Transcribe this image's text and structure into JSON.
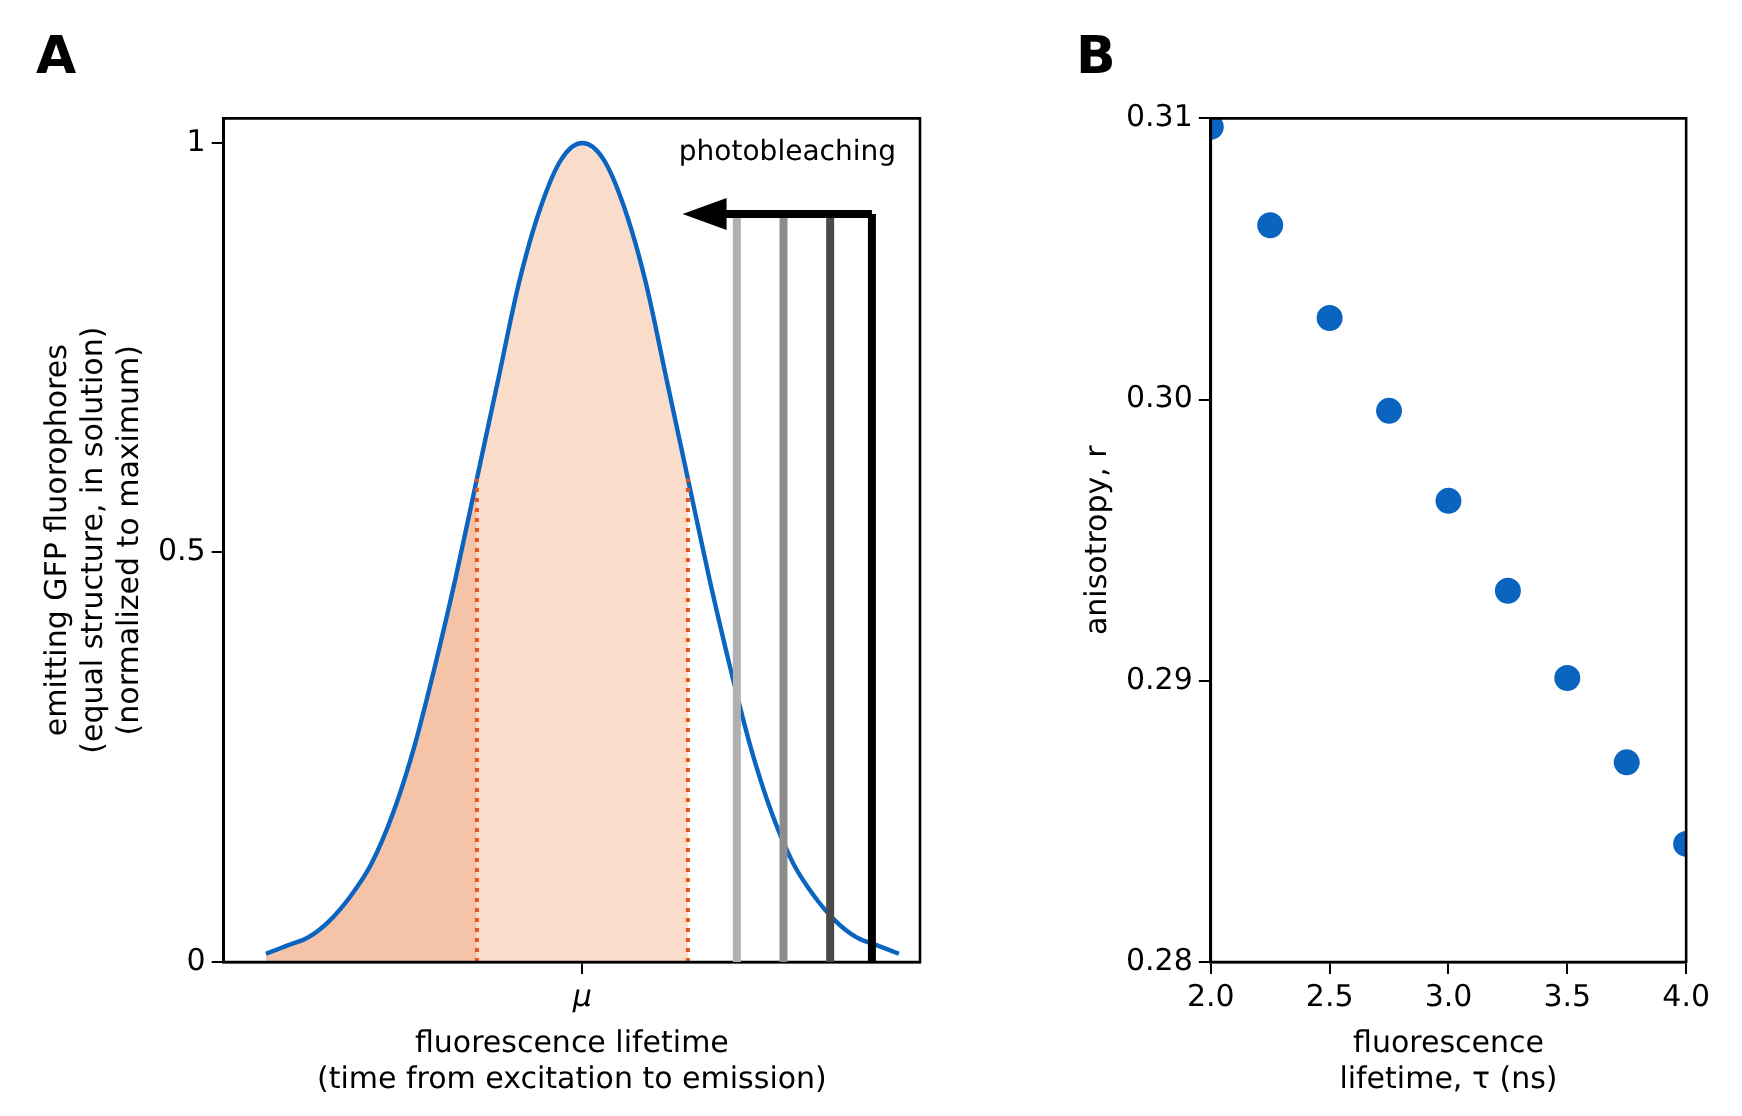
{
  "chart_data": [
    {
      "type": "line",
      "title": "A",
      "xlabel": "fluorescence lifetime\n(time from excitation to emission)",
      "ylabel": "emitting GFP fluorophores\n(equal structure, in solution)\n(normalized to maximum)",
      "categories": [
        null,
        null,
        null,
        null,
        null,
        null,
        null,
        null,
        null,
        null,
        null,
        null,
        null,
        null,
        null,
        null,
        null,
        "μ",
        null,
        null,
        null,
        null,
        null,
        null,
        null,
        null,
        null,
        null,
        null,
        null,
        null,
        null,
        null,
        null
      ],
      "series": [
        {
          "type": "area",
          "color": "#f5c4a8",
          "values": [
            null,
            null,
            0.01,
            0.02,
            0.03,
            0.05,
            0.08,
            0.12,
            0.18,
            0.26,
            0.36,
            0.47,
            0.59,
            null,
            null,
            null,
            null,
            null,
            null,
            null,
            null,
            null,
            null,
            null,
            null,
            null,
            null,
            null,
            null,
            null,
            null,
            null,
            null,
            null
          ]
        },
        {
          "type": "area",
          "color": "#fadccb",
          "line_style": "dotted",
          "values": [
            null,
            null,
            null,
            null,
            null,
            null,
            null,
            null,
            null,
            null,
            null,
            null,
            0.59,
            0.71,
            0.83,
            0.92,
            0.98,
            1,
            0.98,
            0.92,
            0.83,
            0.71,
            0.59,
            null,
            null,
            null,
            null,
            null,
            null,
            null,
            null,
            null,
            null,
            null
          ]
        },
        {
          "type": "line",
          "color": "#0a64c0",
          "values": [
            null,
            null,
            0.01,
            0.02,
            0.03,
            0.05,
            0.08,
            0.12,
            0.18,
            0.26,
            0.36,
            0.47,
            0.59,
            0.71,
            0.83,
            0.92,
            0.98,
            1,
            0.98,
            0.92,
            0.83,
            0.71,
            0.59,
            0.47,
            0.36,
            0.26,
            0.18,
            0.12,
            0.08,
            0.05,
            0.03,
            0.02,
            0.01,
            null
          ]
        }
      ],
      "ylim": [
        0,
        1.03
      ],
      "yticks": [
        0,
        0.5,
        1
      ],
      "grid": false,
      "legend": false,
      "marker": "none",
      "annotations": [
        "photobleaching"
      ]
    },
    {
      "type": "scatter",
      "title": "B",
      "xlabel": "fluorescence\nlifetime, τ (ns)",
      "ylabel": "anisotropy, r",
      "x": [
        2.0,
        2.25,
        2.5,
        2.75,
        3.0,
        3.25,
        3.5,
        3.75,
        4.0
      ],
      "series": [
        {
          "color": "#0a64c0",
          "values": [
            0.3097,
            0.3062,
            0.3029,
            0.2996,
            0.2964,
            0.2932,
            0.2901,
            0.2871,
            0.2842
          ]
        }
      ],
      "xlim": [
        2.0,
        4.0
      ],
      "xticks": [
        {
          "value": 2.0,
          "label": "2.0"
        },
        2.5,
        {
          "value": 3.0,
          "label": "3.0"
        },
        3.5,
        {
          "value": 4.0,
          "label": "4.0"
        }
      ],
      "ylim": [
        0.28,
        0.31
      ],
      "yticks": [
        0.28,
        0.29,
        {
          "value": 0.3,
          "label": "0.30"
        },
        0.31
      ],
      "grid": false,
      "legend": false,
      "marker": "circle"
    }
  ]
}
